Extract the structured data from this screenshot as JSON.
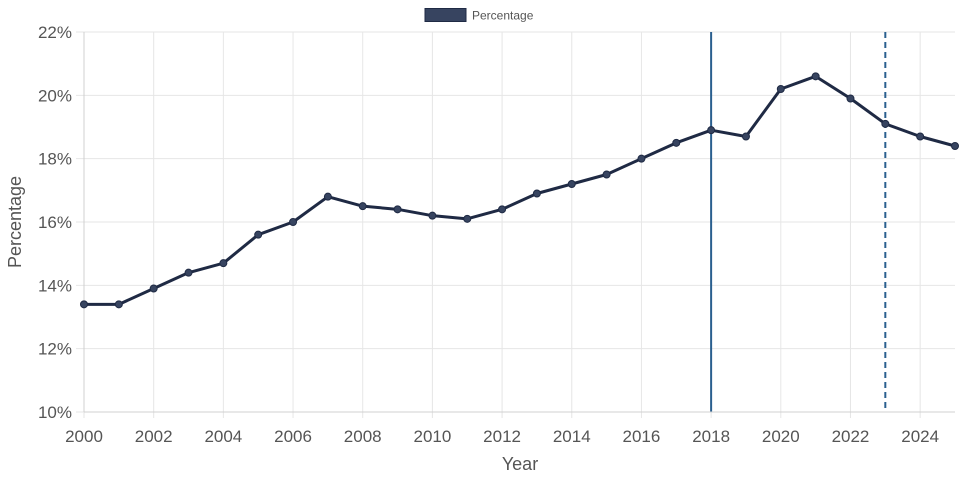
{
  "chart_data": {
    "type": "line",
    "title": "",
    "xlabel": "Year",
    "ylabel": "Percentage",
    "legend": {
      "placement": "top-center",
      "entries": [
        "Percentage"
      ]
    },
    "x": [
      2000,
      2001,
      2002,
      2003,
      2004,
      2005,
      2006,
      2007,
      2008,
      2009,
      2010,
      2011,
      2012,
      2013,
      2014,
      2015,
      2016,
      2017,
      2018,
      2019,
      2020,
      2021,
      2022,
      2023,
      2024,
      2025
    ],
    "series": [
      {
        "name": "Percentage",
        "color": "#1f2a44",
        "fill_color": "#374460",
        "values": [
          13.4,
          13.4,
          13.9,
          14.4,
          14.7,
          15.6,
          16.0,
          16.8,
          16.5,
          16.4,
          16.2,
          16.1,
          16.4,
          16.9,
          17.2,
          17.5,
          18.0,
          18.5,
          18.9,
          18.7,
          20.2,
          20.6,
          19.9,
          19.1,
          18.7,
          18.4
        ]
      }
    ],
    "xlim": [
      2000,
      2025
    ],
    "ylim": [
      10,
      22
    ],
    "x_ticks": [
      2000,
      2002,
      2004,
      2006,
      2008,
      2010,
      2012,
      2014,
      2016,
      2018,
      2020,
      2022,
      2024
    ],
    "x_tick_labels": [
      "2000",
      "2002",
      "2004",
      "2006",
      "2008",
      "2010",
      "2012",
      "2014",
      "2016",
      "2018",
      "2020",
      "2022",
      "2024"
    ],
    "y_ticks": [
      10,
      12,
      14,
      16,
      18,
      20,
      22
    ],
    "y_tick_labels": [
      "10%",
      "12%",
      "14%",
      "16%",
      "18%",
      "20%",
      "22%"
    ],
    "grid": true,
    "reference_lines": [
      {
        "x": 2018,
        "style": "solid",
        "color": "#2a5f8f"
      },
      {
        "x": 2023,
        "style": "dashed",
        "color": "#2a5f8f"
      }
    ]
  }
}
